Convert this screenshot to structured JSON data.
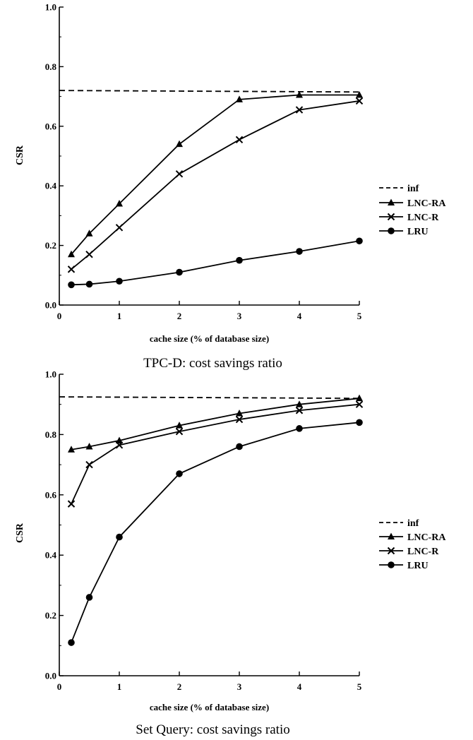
{
  "chart_data": [
    {
      "type": "line",
      "title": "TPC-D: cost savings ratio",
      "xlabel": "cache size (% of database size)",
      "ylabel": "CSR",
      "xlim": [
        0,
        5
      ],
      "ylim": [
        0,
        1.0
      ],
      "xticks": [
        "0",
        "1",
        "2",
        "3",
        "4",
        "5"
      ],
      "yticks": [
        "0.0",
        "0.2",
        "0.4",
        "0.6",
        "0.8",
        "1.0"
      ],
      "x": [
        0.2,
        0.5,
        1,
        2,
        3,
        4,
        5
      ],
      "legend_position": "right",
      "series": [
        {
          "name": "inf",
          "style": "dashed",
          "marker": "none",
          "x": [
            0,
            5
          ],
          "values": [
            0.72,
            0.715
          ]
        },
        {
          "name": "LNC-RA",
          "style": "solid",
          "marker": "triangle",
          "values": [
            0.17,
            0.24,
            0.34,
            0.54,
            0.69,
            0.705,
            0.705
          ]
        },
        {
          "name": "LNC-R",
          "style": "solid",
          "marker": "x",
          "values": [
            0.12,
            0.17,
            0.26,
            0.44,
            0.555,
            0.655,
            0.685
          ]
        },
        {
          "name": "LRU",
          "style": "solid",
          "marker": "circle",
          "values": [
            0.068,
            0.07,
            0.08,
            0.11,
            0.15,
            0.18,
            0.215
          ]
        }
      ]
    },
    {
      "type": "line",
      "title": "Set Query: cost savings ratio",
      "xlabel": "cache size (% of database size)",
      "ylabel": "CSR",
      "xlim": [
        0,
        5
      ],
      "ylim": [
        0,
        1.0
      ],
      "xticks": [
        "0",
        "1",
        "2",
        "3",
        "4",
        "5"
      ],
      "yticks": [
        "0.0",
        "0.2",
        "0.4",
        "0.6",
        "0.8",
        "1.0"
      ],
      "x": [
        0.2,
        0.5,
        1,
        2,
        3,
        4,
        5
      ],
      "legend_position": "right",
      "series": [
        {
          "name": "inf",
          "style": "dashed",
          "marker": "none",
          "x": [
            0,
            5
          ],
          "values": [
            0.925,
            0.92
          ]
        },
        {
          "name": "LNC-RA",
          "style": "solid",
          "marker": "triangle",
          "values": [
            0.75,
            0.76,
            0.78,
            0.83,
            0.87,
            0.9,
            0.92
          ]
        },
        {
          "name": "LNC-R",
          "style": "solid",
          "marker": "x",
          "values": [
            0.57,
            0.7,
            0.765,
            0.81,
            0.85,
            0.88,
            0.9
          ]
        },
        {
          "name": "LRU",
          "style": "solid",
          "marker": "circle",
          "values": [
            0.11,
            0.26,
            0.46,
            0.67,
            0.76,
            0.82,
            0.84
          ]
        }
      ]
    }
  ]
}
